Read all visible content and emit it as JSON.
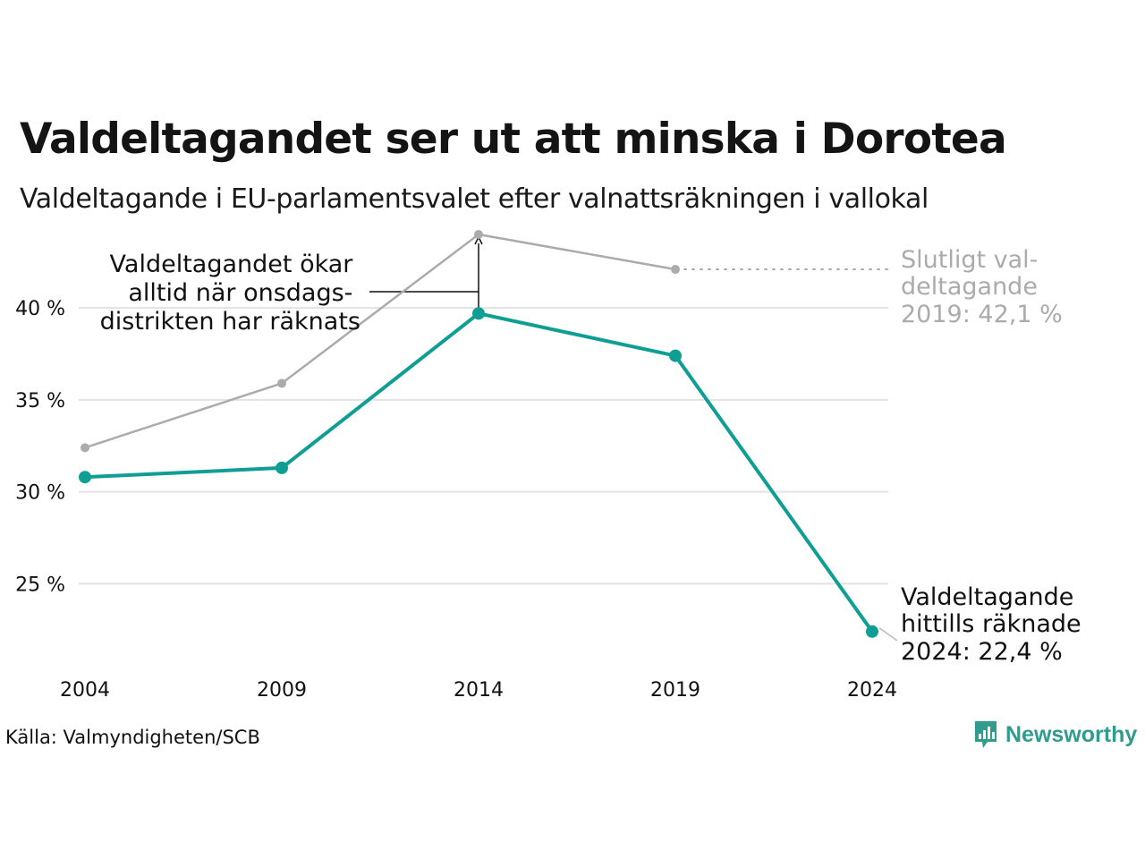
{
  "title": "Valdeltagandet ser ut att minska i Dorotea",
  "subtitle": "Valdeltagande i EU-parlamentsvalet efter valnattsräkningen i vallokal",
  "source": "Källa: Valmyndigheten/SCB",
  "brand": "Newsworthy",
  "colors": {
    "teal": "#0f9e93",
    "gray": "#ababab",
    "brand": "#2f9c8e"
  },
  "chart_data": {
    "type": "line",
    "x": [
      2004,
      2009,
      2014,
      2019,
      2024
    ],
    "ylim": [
      22,
      44
    ],
    "yticks": [
      25,
      30,
      35,
      40
    ],
    "ytick_labels": [
      "25 %",
      "30 %",
      "35 %",
      "40 %"
    ],
    "xtick_labels": [
      "2004",
      "2009",
      "2014",
      "2019",
      "2024"
    ],
    "grid": true,
    "series": [
      {
        "values": [
          32.4,
          35.9,
          44.0,
          42.1,
          null
        ],
        "color": "#ababab"
      },
      {
        "values": [
          30.8,
          31.3,
          39.7,
          37.4,
          22.4
        ],
        "color": "#0f9e93"
      }
    ],
    "annotations": [
      {
        "lines": [
          "Valdeltagandet ökar",
          "alltid när onsdags-",
          "distrikten har räknats"
        ]
      },
      {
        "lines": [
          "Slutligt val-",
          "deltagande",
          "2019: 42,1 %"
        ]
      },
      {
        "lines": [
          "Valdeltagande",
          "hittills räknade",
          "2024: 22,4 %"
        ]
      }
    ]
  }
}
